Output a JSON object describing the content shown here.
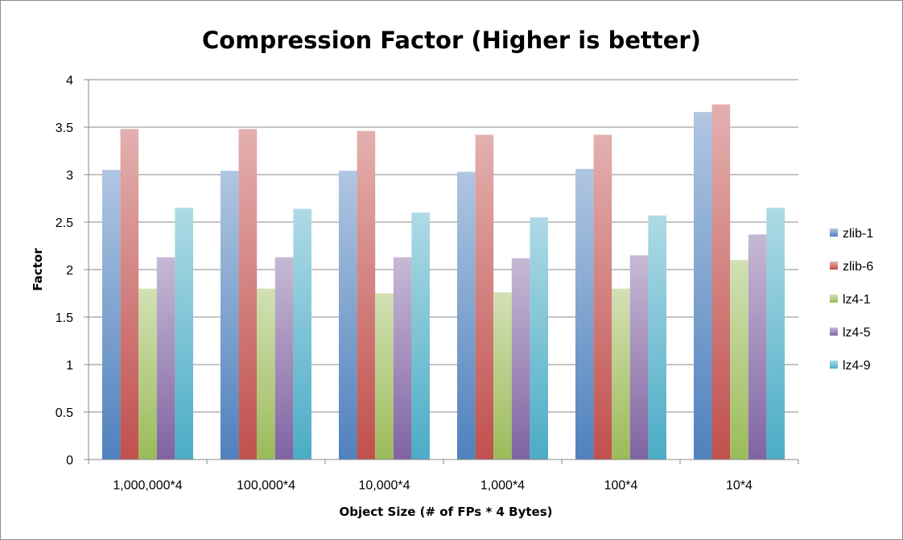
{
  "chart_data": {
    "type": "bar",
    "title": "Compression Factor (Higher is better)",
    "xlabel": "Object Size (# of FPs * 4 Bytes)",
    "ylabel": "Factor",
    "ylim": [
      0,
      4
    ],
    "yticks": [
      "0",
      "0.5",
      "1",
      "1.5",
      "2",
      "2.5",
      "3",
      "3.5",
      "4"
    ],
    "grid": true,
    "legend_position": "right",
    "categories": [
      "1,000,000*4",
      "100,000*4",
      "10,000*4",
      "1,000*4",
      "100*4",
      "10*4"
    ],
    "series": [
      {
        "name": "zlib-1",
        "color": "#4f81bd",
        "values": [
          3.05,
          3.04,
          3.04,
          3.03,
          3.06,
          3.66
        ]
      },
      {
        "name": "zlib-6",
        "color": "#c0504d",
        "values": [
          3.48,
          3.48,
          3.46,
          3.42,
          3.42,
          3.74
        ]
      },
      {
        "name": "lz4-1",
        "color": "#9bbb59",
        "values": [
          1.8,
          1.8,
          1.75,
          1.76,
          1.8,
          2.1
        ]
      },
      {
        "name": "lz4-5",
        "color": "#8064a2",
        "values": [
          2.13,
          2.13,
          2.13,
          2.12,
          2.15,
          2.37
        ]
      },
      {
        "name": "lz4-9",
        "color": "#4bacc6",
        "values": [
          2.65,
          2.64,
          2.6,
          2.55,
          2.57,
          2.65
        ]
      }
    ]
  }
}
